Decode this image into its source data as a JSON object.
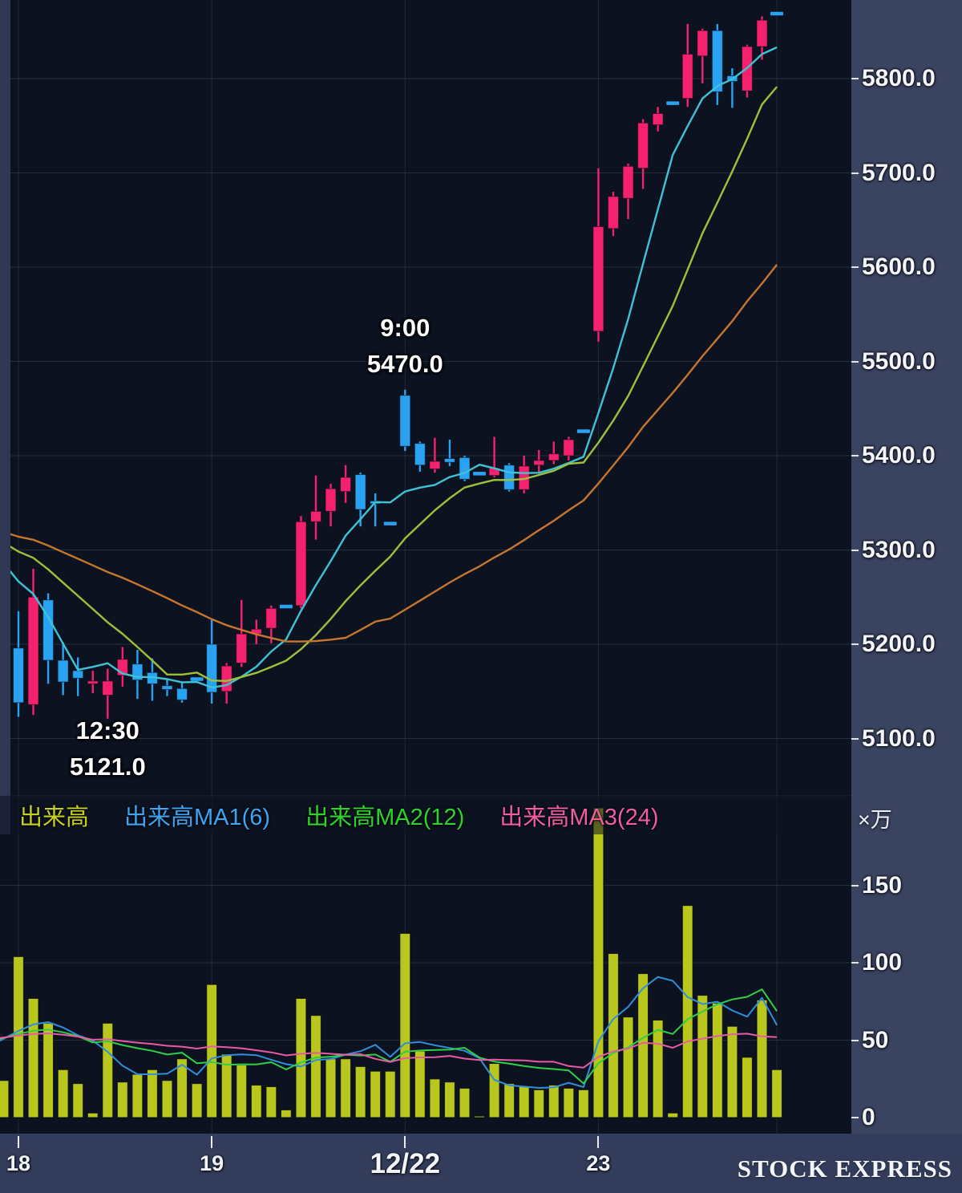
{
  "chart_data": {
    "type": "candlestick_with_volume",
    "price_axis": {
      "tick_labels": [
        "5800.0",
        "5700.0",
        "5600.0",
        "5500.0",
        "5400.0",
        "5300.0",
        "5200.0",
        "5100.0"
      ]
    },
    "volume_axis": {
      "tick_labels": [
        "150",
        "100",
        "50",
        "0"
      ],
      "unit": "×万"
    },
    "x_axis": {
      "ticks": [
        {
          "label": "18",
          "bar": 1,
          "major": false
        },
        {
          "label": "19",
          "bar": 14,
          "major": false
        },
        {
          "label": "12/22",
          "bar": 27,
          "major": true
        },
        {
          "label": "23",
          "bar": 40,
          "major": false
        }
      ],
      "current_bar_line": 52
    },
    "legend": [
      {
        "label": "出来高",
        "color": "#c6d123"
      },
      {
        "label": "出来高MA1(6)",
        "color": "#3da5f4"
      },
      {
        "label": "出来高MA2(12)",
        "color": "#2ed32e"
      },
      {
        "label": "出来高MA3(24)",
        "color": "#ef5da5"
      }
    ],
    "annotations": [
      {
        "bar": 27,
        "placement": "above",
        "lines": [
          "9:00",
          "5470.0"
        ]
      },
      {
        "bar": 7,
        "placement": "below",
        "lines": [
          "12:30",
          "5121.0"
        ]
      }
    ],
    "watermark": "STOCK EXPRESS",
    "colors": {
      "background": "#0d1220",
      "axis_panel": "#3a4360",
      "candle_up": "#f4216e",
      "candle_down": "#2aa2f2",
      "flat_dash": "#2aa2f2",
      "volume_bar": "#b9c71d",
      "price_ma": [
        "#3ec3d5",
        "#9cc23c",
        "#c7752f"
      ],
      "volume_ma": [
        "#2f8fdb",
        "#30cf45",
        "#e85ba4"
      ],
      "grid": "rgba(173,186,214,0.16)"
    },
    "ma": {
      "periods": [
        6,
        12,
        24
      ],
      "price_seed": 5330,
      "volume_seed": 52
    },
    "candles_note": "each row: [open, high, low, close, volume(x10k), flat_dash_bar]",
    "candles": [
      [
        5196,
        5235,
        5130,
        5142,
        24,
        0
      ],
      [
        5196,
        5235,
        5123,
        5138,
        104,
        0
      ],
      [
        5136,
        5280,
        5125,
        5250,
        77,
        0
      ],
      [
        5247,
        5254,
        5158,
        5183,
        61,
        0
      ],
      [
        5183,
        5202,
        5146,
        5160,
        31,
        0
      ],
      [
        5172,
        5186,
        5145,
        5164,
        22,
        0
      ],
      [
        5158,
        5172,
        5148,
        5161,
        3,
        0
      ],
      [
        5146,
        5174,
        5121,
        5161,
        61,
        0
      ],
      [
        5167,
        5197,
        5155,
        5184,
        23,
        0
      ],
      [
        5179,
        5194,
        5142,
        5162,
        28,
        0
      ],
      [
        5170,
        5185,
        5140,
        5158,
        31,
        0
      ],
      [
        5156,
        5164,
        5145,
        5152,
        24,
        0
      ],
      [
        5153,
        5160,
        5138,
        5141,
        38,
        0
      ],
      [
        5163,
        5163,
        5163,
        5163,
        22,
        1
      ],
      [
        5200,
        5226,
        5137,
        5149,
        86,
        0
      ],
      [
        5150,
        5180,
        5137,
        5177,
        41,
        0
      ],
      [
        5180,
        5247,
        5176,
        5211,
        34,
        0
      ],
      [
        5211,
        5226,
        5200,
        5216,
        21,
        0
      ],
      [
        5217,
        5241,
        5201,
        5238,
        20,
        0
      ],
      [
        5240,
        5240,
        5240,
        5240,
        5,
        1
      ],
      [
        5241,
        5336,
        5238,
        5330,
        77,
        0
      ],
      [
        5330,
        5379,
        5311,
        5341,
        66,
        0
      ],
      [
        5341,
        5370,
        5325,
        5365,
        38,
        0
      ],
      [
        5362,
        5390,
        5350,
        5377,
        38,
        0
      ],
      [
        5380,
        5382,
        5325,
        5343,
        33,
        0
      ],
      [
        5352,
        5360,
        5325,
        5349,
        30,
        0
      ],
      [
        5328,
        5328,
        5328,
        5328,
        30,
        1
      ],
      [
        5464,
        5470,
        5405,
        5410,
        119,
        0
      ],
      [
        5413,
        5415,
        5383,
        5390,
        43,
        0
      ],
      [
        5386,
        5419,
        5382,
        5394,
        25,
        0
      ],
      [
        5397,
        5417,
        5389,
        5393,
        23,
        0
      ],
      [
        5398,
        5400,
        5373,
        5375,
        19,
        0
      ],
      [
        5381,
        5381,
        5381,
        5381,
        1,
        1
      ],
      [
        5379,
        5420,
        5377,
        5387,
        35,
        0
      ],
      [
        5390,
        5392,
        5362,
        5364,
        22,
        0
      ],
      [
        5364,
        5400,
        5360,
        5389,
        20,
        0
      ],
      [
        5390,
        5406,
        5381,
        5395,
        18,
        0
      ],
      [
        5395,
        5415,
        5391,
        5402,
        21,
        0
      ],
      [
        5400,
        5420,
        5395,
        5417,
        19,
        0
      ],
      [
        5426,
        5426,
        5426,
        5426,
        18,
        1
      ],
      [
        5532,
        5705,
        5521,
        5643,
        200,
        0
      ],
      [
        5641,
        5680,
        5633,
        5675,
        106,
        0
      ],
      [
        5673,
        5710,
        5651,
        5707,
        65,
        0
      ],
      [
        5705,
        5757,
        5683,
        5753,
        93,
        0
      ],
      [
        5751,
        5770,
        5744,
        5763,
        63,
        0
      ],
      [
        5774,
        5774,
        5774,
        5774,
        3,
        1
      ],
      [
        5779,
        5858,
        5770,
        5826,
        137,
        0
      ],
      [
        5824,
        5853,
        5795,
        5851,
        79,
        0
      ],
      [
        5851,
        5858,
        5772,
        5786,
        74,
        0
      ],
      [
        5803,
        5811,
        5769,
        5797,
        59,
        0
      ],
      [
        5787,
        5836,
        5780,
        5834,
        39,
        0
      ],
      [
        5834,
        5866,
        5820,
        5862,
        76,
        0
      ],
      [
        5869,
        5869,
        5869,
        5869,
        31,
        1
      ]
    ]
  }
}
